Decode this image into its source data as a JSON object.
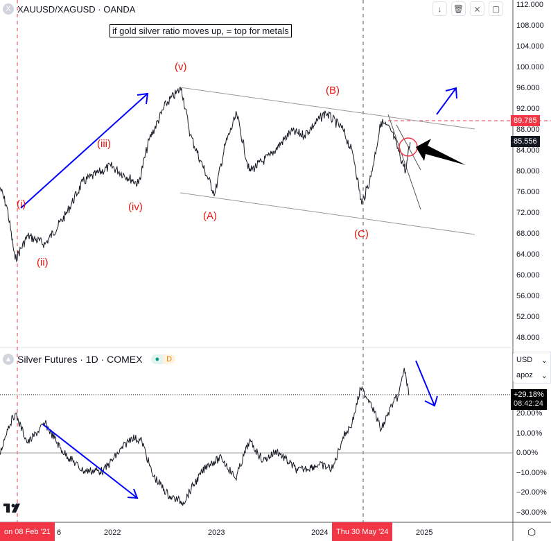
{
  "top_pane": {
    "symbol": "XAUUSD/XAGUSD · OANDA",
    "note": "if gold silver ratio moves up, = top for metals",
    "y_ticks": [
      "112.000",
      "108.000",
      "104.000",
      "100.000",
      "96.000",
      "92.000",
      "88.000",
      "84.000",
      "80.000",
      "76.000",
      "72.000",
      "68.000",
      "64.000",
      "60.000",
      "56.000",
      "52.000",
      "48.000"
    ],
    "level_badge": "89.785",
    "last_badge": "85.556",
    "waves": [
      "(i)",
      "(ii)",
      "(iii)",
      "(iv)",
      "(v)",
      "(A)",
      "(B)",
      "(C)"
    ],
    "toolbar": [
      {
        "icon": "arrow-down-icon",
        "glyph": "↓"
      },
      {
        "icon": "trash-icon",
        "glyph": "🗑"
      },
      {
        "icon": "collapse-icon",
        "glyph": "⨯"
      },
      {
        "icon": "maximize-icon",
        "glyph": "▢"
      }
    ]
  },
  "bottom_pane": {
    "symbol": "Silver Futures · 1D · COMEX",
    "badge": "D",
    "currency": "USD",
    "scale": "apoz",
    "y_ticks": [
      "20.00%",
      "10.00%",
      "0.00%",
      "−10.00%",
      "−20.00%",
      "−30.00%"
    ],
    "last_badge": "+29.18%",
    "countdown": "08:42:24"
  },
  "x_axis": {
    "ticks": [
      "6",
      "2022",
      "2023",
      "2024",
      "2025"
    ],
    "cursor_left": "on 08 Feb '21",
    "cursor_right": "Thu 30 May '24"
  },
  "colors": {
    "red": "#f23645",
    "blue": "#0000ff",
    "line": "#131722"
  },
  "chart_data": [
    {
      "type": "line",
      "title": "XAUUSD/XAGUSD · OANDA",
      "ylim": [
        48,
        112
      ],
      "level": 89.785,
      "last": 85.556,
      "x": [
        "2020-12-01",
        "2020-12-27",
        "2021-01-25",
        "2021-03-10",
        "2021-05-10",
        "2021-07-21",
        "2021-09-20",
        "2021-12-27",
        "2022-04-03",
        "2022-05-10",
        "2022-07-09",
        "2022-09-01",
        "2022-10-02",
        "2022-11-07",
        "2022-12-27",
        "2023-02-01",
        "2023-03-14",
        "2023-04-27",
        "2023-07-09",
        "2023-09-20",
        "2023-11-07",
        "2024-01-20",
        "2024-03-21",
        "2024-04-27",
        "2024-05-26",
        "2024-06-27",
        "2024-08-02",
        "2024-09-08",
        "2024-10-27",
        "2024-11-12"
      ],
      "y": [
        77,
        73,
        63,
        67.6,
        66,
        71.6,
        78,
        81,
        77.6,
        86,
        93,
        96,
        87,
        82,
        75.6,
        85,
        91,
        80,
        83,
        87.6,
        87,
        91.3,
        88,
        83,
        73.6,
        79,
        89.6,
        87.6,
        80,
        85.6
      ]
    },
    {
      "type": "line",
      "title": "Silver Futures · 1D · COMEX",
      "ylim": [
        -33,
        45
      ],
      "last": 29.18,
      "x": [
        "2020-12-01",
        "2020-12-27",
        "2021-01-25",
        "2021-03-10",
        "2021-05-10",
        "2021-07-09",
        "2021-09-20",
        "2021-12-01",
        "2022-03-10",
        "2022-04-15",
        "2022-05-22",
        "2022-07-21",
        "2022-09-08",
        "2022-10-14",
        "2022-12-01",
        "2023-01-20",
        "2023-03-10",
        "2023-04-27",
        "2023-06-15",
        "2023-08-02",
        "2023-10-14",
        "2023-12-27",
        "2024-02-14",
        "2024-03-21",
        "2024-04-22",
        "2024-05-22",
        "2024-06-27",
        "2024-08-02",
        "2024-09-08",
        "2024-10-02",
        "2024-10-22",
        "2024-11-07"
      ],
      "y": [
        -1,
        12,
        20,
        5,
        15,
        1,
        -9,
        -9,
        8,
        6,
        -11,
        -22,
        -25,
        -16,
        -6,
        -2.5,
        -13,
        6,
        -4,
        1,
        -9,
        -6,
        -8,
        8,
        15,
        32.6,
        25.6,
        11.6,
        24,
        29,
        43,
        29.2
      ]
    }
  ]
}
